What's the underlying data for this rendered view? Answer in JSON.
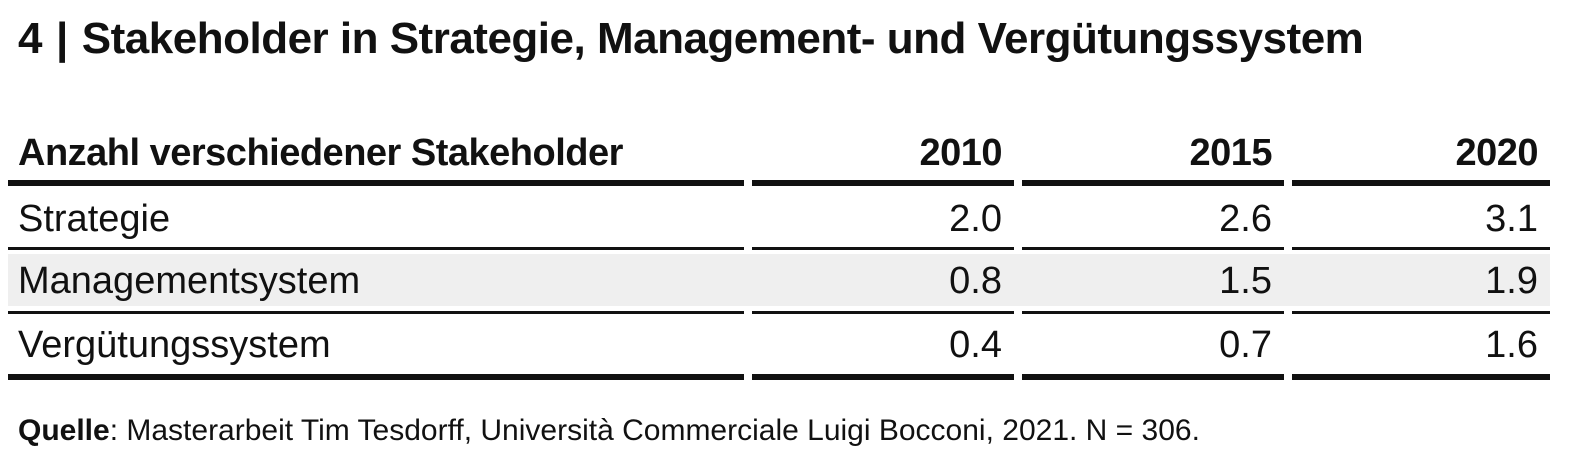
{
  "title": {
    "number": "4",
    "separator": "|",
    "text": "Stakeholder in Strategie, Management- und Vergütungssystem"
  },
  "chart_data": {
    "type": "table",
    "title": "Stakeholder in Strategie, Management- und Vergütungssystem",
    "header": {
      "label": "Anzahl verschiedener Stakeholder",
      "columns": [
        "2010",
        "2015",
        "2020"
      ]
    },
    "rows": [
      {
        "label": "Strategie",
        "values": [
          "2.0",
          "2.6",
          "3.1"
        ]
      },
      {
        "label": "Managementsystem",
        "values": [
          "0.8",
          "1.5",
          "1.9"
        ]
      },
      {
        "label": "Vergütungssystem",
        "values": [
          "0.4",
          "0.7",
          "1.6"
        ]
      }
    ],
    "shaded_rows": [
      1
    ],
    "colors": {
      "text": "#111111",
      "rule": "#111111",
      "shade": "#efefef"
    }
  },
  "source": {
    "label": "Quelle",
    "text": ": Masterarbeit Tim Tesdorff, Università Commerciale Luigi Bocconi, 2021. N = 306."
  }
}
